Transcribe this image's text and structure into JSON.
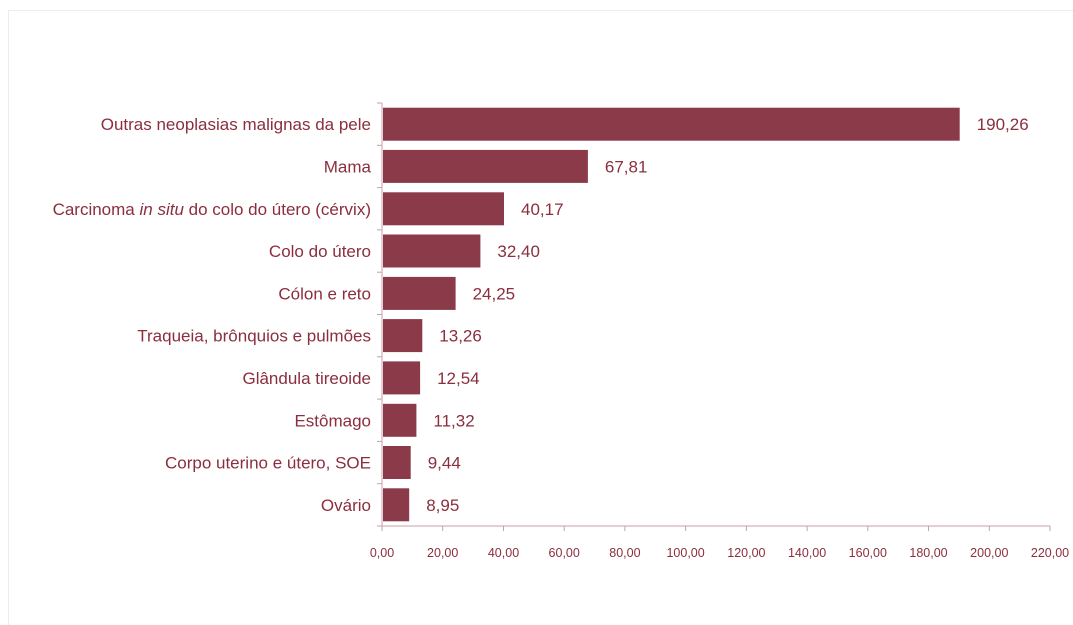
{
  "chart_data": {
    "type": "bar",
    "orientation": "horizontal",
    "title": "",
    "xlabel": "",
    "ylabel": "",
    "xlim": [
      0,
      220
    ],
    "grid": false,
    "legend": "none",
    "bar_color": "#8b3a49",
    "text_color": "#8b2e3e",
    "categories": [
      "Outras  neoplasias malignas da pele",
      "Mama",
      "Carcinoma in situ do colo do útero (cérvix)",
      "Colo do útero",
      "Cólon e reto",
      "Traqueia, brônquios e pulmões",
      "Glândula tireoide",
      "Estômago",
      "Corpo uterino e útero, SOE",
      "Ovário"
    ],
    "values": [
      190.26,
      67.81,
      40.17,
      32.4,
      24.25,
      13.26,
      12.54,
      11.32,
      9.44,
      8.95
    ],
    "value_labels": [
      "190,26",
      "67,81",
      "40,17",
      "32,40",
      "24,25",
      "13,26",
      "12,54",
      "11,32",
      "9,44",
      "8,95"
    ],
    "ticks": [
      0,
      20,
      40,
      60,
      80,
      100,
      120,
      140,
      160,
      180,
      200,
      220
    ],
    "tick_labels": [
      "0,00",
      "20,00",
      "40,00",
      "60,00",
      "80,00",
      "100,00",
      "120,00",
      "140,00",
      "160,00",
      "180,00",
      "200,00",
      "220,00"
    ]
  },
  "labels": {
    "carcinoma_pre": "Carcinoma ",
    "carcinoma_italic": "in situ",
    "carcinoma_post": " do colo do útero (cérvix)"
  }
}
